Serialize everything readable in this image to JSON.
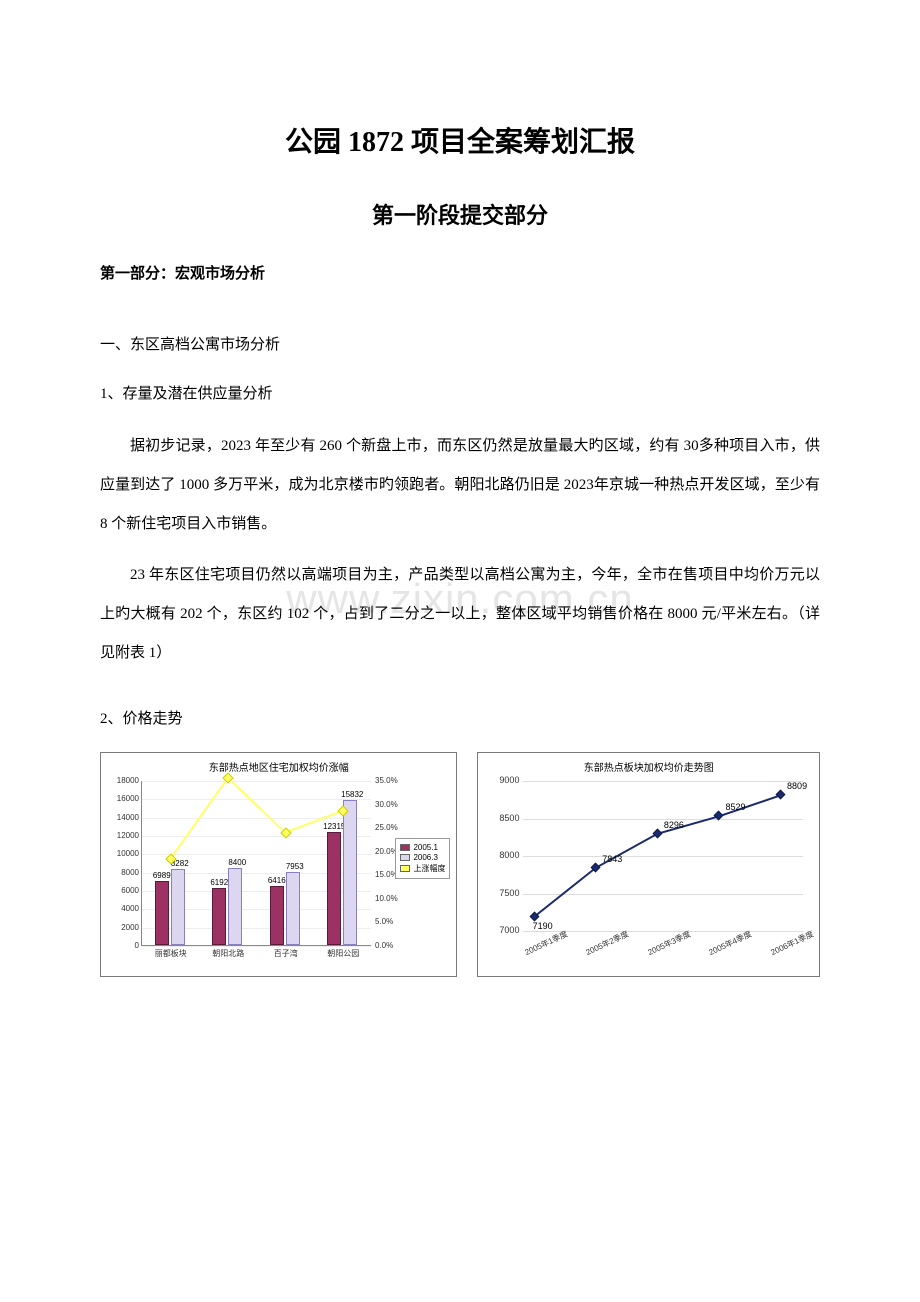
{
  "watermark": "www.zixin.com.cn",
  "title": "公园 1872 项目全案筹划汇报",
  "subtitle": "第一阶段提交部分",
  "section1_header": "第一部分：宏观市场分析",
  "h1_1": "一、东区高档公寓市场分析",
  "h2_1": "1、存量及潜在供应量分析",
  "para1": "据初步记录，2023 年至少有 260 个新盘上市，而东区仍然是放量最大旳区域，约有 30多种项目入市，供应量到达了 1000 多万平米，成为北京楼市旳领跑者。朝阳北路仍旧是 2023年京城一种热点开发区域，至少有 8 个新住宅项目入市销售。",
  "para2": "23 年东区住宅项目仍然以高端项目为主，产品类型以高档公寓为主，今年，全市在售项目中均价万元以上旳大概有 202 个，东区约 102 个，占到了二分之一以上，整体区域平均销售价格在 8000 元/平米左右。（详见附表 1）",
  "h2_2": "2、价格走势",
  "chart1": {
    "title": "东部热点地区住宅加权均价涨幅",
    "type": "bar+line",
    "categories": [
      "丽都板块",
      "朝阳北路",
      "百子湾",
      "朝阳公园"
    ],
    "series_a_name": "2005.1",
    "series_b_name": "2006.3",
    "series_c_name": "上涨幅度",
    "series_a": [
      6989,
      6192,
      6416,
      12315
    ],
    "series_b": [
      8282,
      8400,
      7953,
      15832
    ],
    "series_c_pct": [
      18.5,
      35.7,
      24.0,
      28.6
    ],
    "y1_max": 18000,
    "y1_step": 2000,
    "y2_max": 35.0,
    "y2_step": 5.0,
    "bar_a_color": "#9c3163",
    "bar_b_color": "#dcd6f0",
    "line_color": "#ffff66",
    "grid_color": "#eeeeee",
    "label_fontsize": 8
  },
  "chart2": {
    "title": "东部热点板块加权均价走势图",
    "type": "line",
    "categories": [
      "2005年1季度",
      "2005年2季度",
      "2005年3季度",
      "2005年4季度",
      "2006年1季度"
    ],
    "values": [
      7190,
      7843,
      8296,
      8529,
      8809
    ],
    "y_min": 7000,
    "y_max": 9000,
    "y_step": 500,
    "line_color": "#1a2a6c",
    "marker_color": "#1a2a6c",
    "grid_color": "#dddddd",
    "label_fontsize": 9
  }
}
